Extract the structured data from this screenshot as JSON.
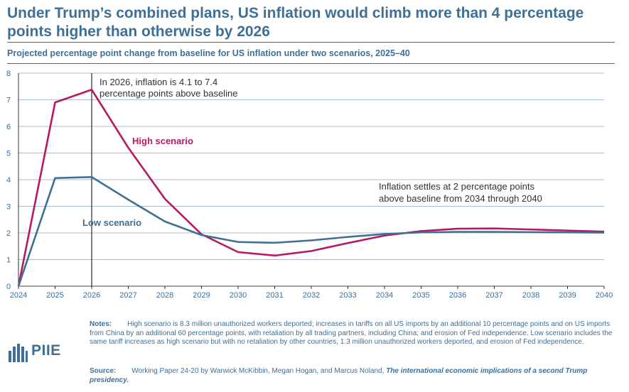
{
  "title": "Under Trump’s combined plans, US inflation would climb more than 4 percentage points higher than otherwise by 2026",
  "subtitle": "Projected percentage point change from baseline for US inflation under two scenarios, 2025–40",
  "notes_label": "Notes:",
  "notes_text": "High scenario is 8.3 million unauthorized workers deported; increases in tariffs on all US imports by an additional 10 percentage points and on US imports from China by an additional 60 percentage points, with retaliation by all trading partners, including China; and erosion of Fed independence. Low scenario includes the same tariff increases as high scenario but with no retaliation by other countries, 1.3 million unauthorized workers deported, and erosion of Fed independence.",
  "source_label": "Source:",
  "source_text": "Working Paper 24-20 by Warwick McKibbin, Megan Hogan, and Marcus Noland, ",
  "source_title": "The international economic implications of a second Trump presidency.",
  "logo_text": "PIIE",
  "colors": {
    "accent": "#3f6f96",
    "high": "#b5195f",
    "low": "#3f6f96",
    "grid": "#8fa7bc"
  },
  "chart_data": {
    "type": "line",
    "x": [
      2024,
      2025,
      2026,
      2027,
      2028,
      2029,
      2030,
      2031,
      2032,
      2033,
      2034,
      2035,
      2036,
      2037,
      2038,
      2039,
      2040
    ],
    "xlim": [
      2024,
      2040
    ],
    "ylim": [
      0,
      8
    ],
    "yticks": [
      0,
      1,
      2,
      3,
      4,
      5,
      6,
      7,
      8
    ],
    "grid": true,
    "series": [
      {
        "name": "High scenario",
        "color": "#b5195f",
        "values": [
          0,
          6.9,
          7.38,
          5.2,
          3.28,
          1.95,
          1.28,
          1.15,
          1.32,
          1.62,
          1.9,
          2.07,
          2.16,
          2.17,
          2.13,
          2.09,
          2.05
        ]
      },
      {
        "name": "Low scenario",
        "color": "#3f6f96",
        "values": [
          0,
          4.06,
          4.1,
          3.25,
          2.43,
          1.92,
          1.66,
          1.63,
          1.72,
          1.85,
          1.96,
          2.02,
          2.04,
          2.04,
          2.03,
          2.02,
          2.01
        ]
      }
    ],
    "annotations": [
      {
        "text_lines": [
          "In 2026, inflation is 4.1 to 7.4",
          "percentage points above baseline"
        ],
        "x": 2026
      },
      {
        "text_lines": [
          "Inflation settles at 2 percentage points",
          "above baseline from 2034 through 2040"
        ]
      }
    ],
    "vline_x": 2026
  }
}
